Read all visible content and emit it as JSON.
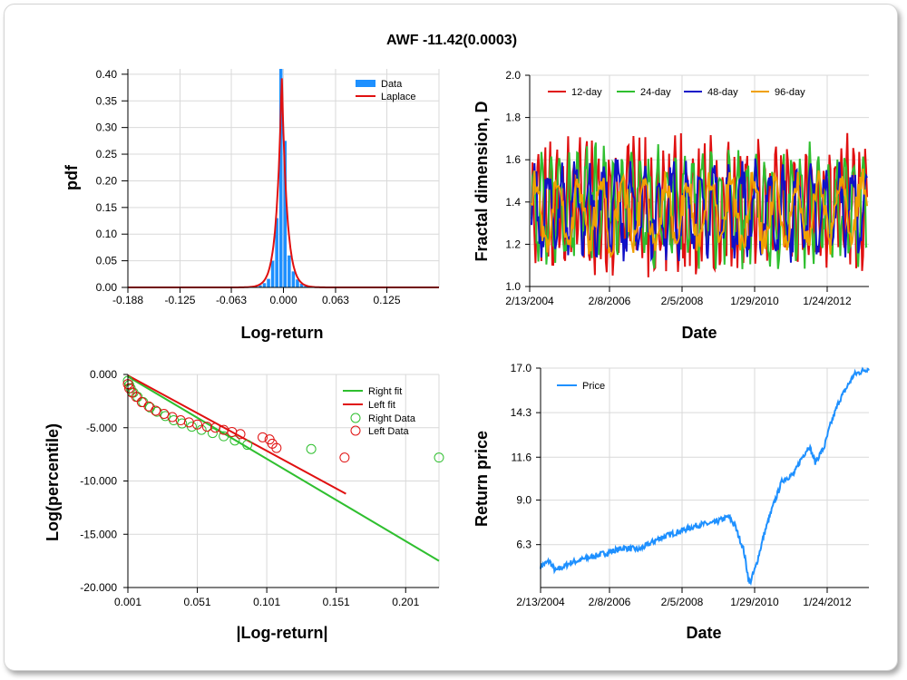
{
  "title": "AWF -11.42(0.0003)",
  "chart_data": [
    {
      "id": "pdf",
      "type": "bar",
      "xlabel": "Log-return",
      "ylabel": "pdf",
      "xlim": [
        -0.188,
        0.188
      ],
      "ylim": [
        0,
        0.41
      ],
      "x_ticks": [
        "-0.188",
        "-0.125",
        "-0.063",
        "0.000",
        "0.063",
        "0.125"
      ],
      "y_ticks": [
        "0.00",
        "0.05",
        "0.10",
        "0.15",
        "0.20",
        "0.25",
        "0.30",
        "0.35",
        "0.40"
      ],
      "legend": [
        "Data",
        "Laplace"
      ],
      "legend_position": "top-right",
      "colors": {
        "data": "#1e90ff",
        "fit": "#e01010"
      },
      "bins": [
        {
          "x": -0.0375,
          "y": 0.001
        },
        {
          "x": -0.0325,
          "y": 0.002
        },
        {
          "x": -0.0275,
          "y": 0.004
        },
        {
          "x": -0.0225,
          "y": 0.008
        },
        {
          "x": -0.0175,
          "y": 0.016
        },
        {
          "x": -0.0125,
          "y": 0.05
        },
        {
          "x": -0.0075,
          "y": 0.13
        },
        {
          "x": -0.0025,
          "y": 0.41
        },
        {
          "x": 0.0025,
          "y": 0.275
        },
        {
          "x": 0.0075,
          "y": 0.06
        },
        {
          "x": 0.0125,
          "y": 0.03
        },
        {
          "x": 0.0175,
          "y": 0.015
        },
        {
          "x": 0.0225,
          "y": 0.007
        },
        {
          "x": 0.0275,
          "y": 0.003
        },
        {
          "x": 0.0325,
          "y": 0.002
        }
      ],
      "laplace": {
        "mu": -0.002,
        "peak": 0.4,
        "scale": 0.0062
      }
    },
    {
      "id": "fractal",
      "type": "line",
      "xlabel": "Date",
      "ylabel": "Fractal dimension, D",
      "ylim": [
        1.0,
        2.0
      ],
      "x_ticks": [
        "2/13/2004",
        "2/8/2006",
        "2/5/2008",
        "1/29/2010",
        "1/24/2012"
      ],
      "y_ticks": [
        "1.0",
        "1.2",
        "1.4",
        "1.6",
        "1.8",
        "2.0"
      ],
      "legend_position": "top",
      "series": [
        {
          "name": "12-day",
          "color": "#e01010",
          "period": 6,
          "amp": 0.25,
          "base": 1.38
        },
        {
          "name": "24-day",
          "color": "#2fbf2f",
          "period": 9,
          "amp": 0.22,
          "base": 1.38
        },
        {
          "name": "48-day",
          "color": "#1010c8",
          "period": 14,
          "amp": 0.18,
          "base": 1.36
        },
        {
          "name": "96-day",
          "color": "#f0a000",
          "period": 22,
          "amp": 0.15,
          "base": 1.35
        }
      ]
    },
    {
      "id": "tail",
      "type": "scatter",
      "xlabel": "|Log-return|",
      "ylabel": "Log(percentile)",
      "xlim": [
        0.001,
        0.225
      ],
      "ylim": [
        -20,
        0
      ],
      "x_ticks": [
        "0.001",
        "0.051",
        "0.101",
        "0.151",
        "0.201"
      ],
      "y_ticks": [
        "0.000",
        "-5.000",
        "-10.000",
        "-15.000",
        "-20.000"
      ],
      "legend_position": "top-right",
      "colors": {
        "right": "#2fbf2f",
        "left": "#e01010"
      },
      "right_fit": {
        "name": "Right fit",
        "x": [
          0.001,
          0.225
        ],
        "y": [
          -0.2,
          -17.5
        ]
      },
      "left_fit": {
        "name": "Left fit",
        "x": [
          0.001,
          0.158
        ],
        "y": [
          -0.1,
          -11.2
        ]
      },
      "right_data": {
        "name": "Right Data",
        "x": [
          0.001,
          0.002,
          0.003,
          0.005,
          0.008,
          0.012,
          0.017,
          0.022,
          0.028,
          0.034,
          0.04,
          0.047,
          0.054,
          0.062,
          0.07,
          0.078,
          0.087,
          0.133,
          0.225
        ],
        "y": [
          -0.6,
          -1.0,
          -1.3,
          -1.7,
          -2.1,
          -2.6,
          -3.1,
          -3.5,
          -3.9,
          -4.3,
          -4.6,
          -4.9,
          -5.2,
          -5.5,
          -5.8,
          -6.2,
          -6.6,
          -7.0,
          -7.8
        ]
      },
      "left_data": {
        "name": "Left Data",
        "x": [
          0.001,
          0.002,
          0.004,
          0.007,
          0.011,
          0.016,
          0.021,
          0.027,
          0.033,
          0.039,
          0.045,
          0.051,
          0.058,
          0.064,
          0.07,
          0.076,
          0.082,
          0.098,
          0.103,
          0.105,
          0.108,
          0.157
        ],
        "y": [
          -0.9,
          -1.3,
          -1.7,
          -2.1,
          -2.6,
          -3.0,
          -3.4,
          -3.7,
          -4.0,
          -4.3,
          -4.5,
          -4.7,
          -4.9,
          -5.0,
          -5.2,
          -5.4,
          -5.6,
          -5.9,
          -6.1,
          -6.5,
          -6.9,
          -7.8
        ]
      }
    },
    {
      "id": "price",
      "type": "line",
      "xlabel": "Date",
      "ylabel": "Return price",
      "ylim": [
        3.7,
        17.0
      ],
      "x_ticks": [
        "2/13/2004",
        "2/8/2006",
        "2/5/2008",
        "1/29/2010",
        "1/24/2012"
      ],
      "y_ticks": [
        "6.3",
        "9.0",
        "11.6",
        "14.3",
        "17.0"
      ],
      "legend_position": "top-left",
      "series": [
        {
          "name": "Price",
          "color": "#1e90ff"
        }
      ],
      "anchors": [
        [
          0.0,
          5.0
        ],
        [
          0.03,
          5.3
        ],
        [
          0.05,
          4.7
        ],
        [
          0.1,
          5.2
        ],
        [
          0.2,
          5.7
        ],
        [
          0.28,
          6.1
        ],
        [
          0.33,
          6.0
        ],
        [
          0.4,
          6.7
        ],
        [
          0.48,
          7.2
        ],
        [
          0.53,
          7.5
        ],
        [
          0.58,
          7.6
        ],
        [
          0.63,
          8.0
        ],
        [
          0.65,
          7.5
        ],
        [
          0.68,
          6.0
        ],
        [
          0.7,
          3.9
        ],
        [
          0.72,
          4.9
        ],
        [
          0.75,
          7.0
        ],
        [
          0.78,
          8.7
        ],
        [
          0.81,
          10.2
        ],
        [
          0.85,
          10.6
        ],
        [
          0.87,
          11.4
        ],
        [
          0.9,
          12.3
        ],
        [
          0.92,
          11.3
        ],
        [
          0.95,
          12.2
        ],
        [
          0.97,
          13.5
        ],
        [
          1.0,
          15.0
        ],
        [
          1.05,
          16.6
        ],
        [
          1.1,
          17.0
        ]
      ],
      "x_span": [
        0,
        1.1
      ]
    }
  ]
}
